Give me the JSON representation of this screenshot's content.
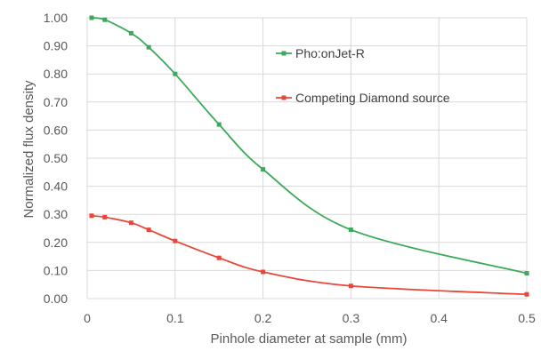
{
  "chart_data": {
    "type": "line",
    "title": "",
    "xlabel": "Pinhole diameter at sample (mm)",
    "ylabel": "Normalized flux density",
    "xlim": [
      0,
      0.5
    ],
    "ylim": [
      0,
      1.0
    ],
    "x_ticks": [
      0,
      0.1,
      0.2,
      0.3,
      0.4,
      0.5
    ],
    "x_tick_labels": [
      "0",
      "0.1",
      "0.2",
      "0.3",
      "0.4",
      "0.5"
    ],
    "y_ticks": [
      0,
      0.1,
      0.2,
      0.3,
      0.4,
      0.5,
      0.6,
      0.7,
      0.8,
      0.9,
      1.0
    ],
    "y_tick_labels": [
      "0.00",
      "0.10",
      "0.20",
      "0.30",
      "0.40",
      "0.50",
      "0.60",
      "0.70",
      "0.80",
      "0.90",
      "1.00"
    ],
    "grid": true,
    "legend_position": "top-right",
    "series": [
      {
        "name": "Pho:onJet-R",
        "color": "#3aaa5a",
        "x": [
          0.005,
          0.02,
          0.05,
          0.07,
          0.1,
          0.15,
          0.2,
          0.3,
          0.5
        ],
        "y": [
          1.0,
          0.993,
          0.945,
          0.895,
          0.8,
          0.62,
          0.46,
          0.245,
          0.09
        ]
      },
      {
        "name": "Competing Diamond source",
        "color": "#e8473a",
        "x": [
          0.005,
          0.02,
          0.05,
          0.07,
          0.1,
          0.15,
          0.2,
          0.3,
          0.5
        ],
        "y": [
          0.295,
          0.29,
          0.27,
          0.245,
          0.205,
          0.145,
          0.095,
          0.045,
          0.015
        ]
      }
    ]
  }
}
